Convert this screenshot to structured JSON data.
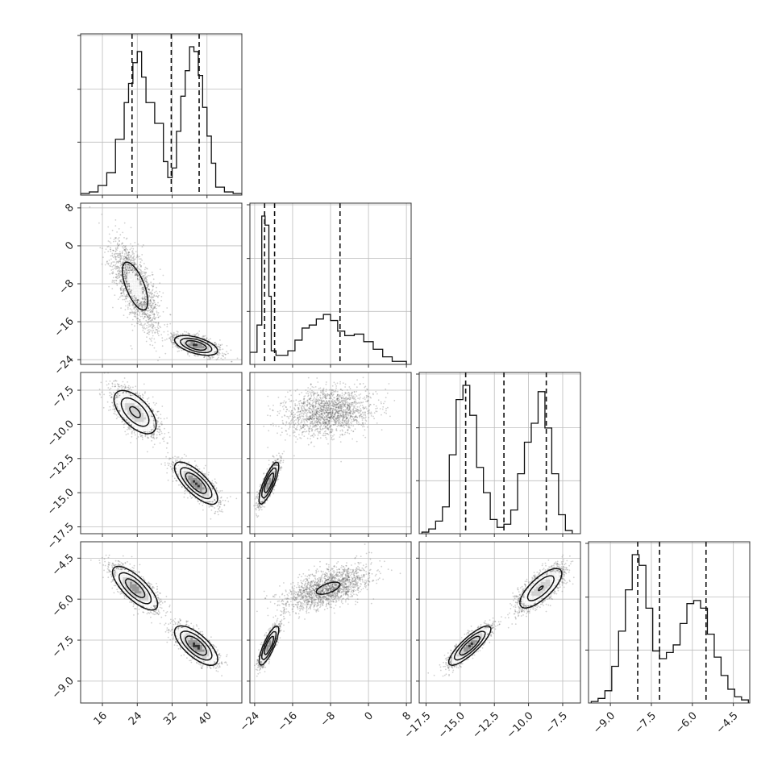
{
  "chart_data": {
    "type": "corner",
    "xlabel": "",
    "ylabel": "",
    "grid": true,
    "parameters": [
      {
        "range": [
          11,
          48
        ],
        "ticks": [
          16,
          24,
          32,
          40
        ],
        "tick_labels": [
          "16",
          "24",
          "32",
          "40"
        ],
        "quantiles": [
          22.8,
          31.8,
          38.2
        ],
        "hist_edges": [
          11,
          13,
          15,
          17,
          19,
          21,
          22,
          23,
          24,
          25,
          26,
          28,
          30,
          31,
          32,
          33,
          34,
          35,
          36,
          37,
          38,
          39,
          40,
          41,
          42,
          44,
          46,
          48
        ],
        "hist_values": [
          0.01,
          0.02,
          0.06,
          0.14,
          0.35,
          0.58,
          0.7,
          0.83,
          0.9,
          0.74,
          0.58,
          0.45,
          0.21,
          0.11,
          0.17,
          0.4,
          0.62,
          0.78,
          0.93,
          0.9,
          0.75,
          0.55,
          0.37,
          0.2,
          0.05,
          0.02,
          0.01
        ]
      },
      {
        "range": [
          -25,
          9
        ],
        "ticks": [
          -24,
          -16,
          -8,
          0,
          8
        ],
        "tick_labels": [
          "−24",
          "−16",
          "−8",
          "0",
          "8"
        ],
        "quantiles": [
          -21.9,
          -19.8,
          -6.0
        ],
        "hist_edges": [
          -25,
          -23.5,
          -22.5,
          -21.8,
          -21,
          -20.5,
          -19.5,
          -18.5,
          -17,
          -15.5,
          -14,
          -12.5,
          -11,
          -9.5,
          -8,
          -6.5,
          -5,
          -3,
          -1,
          1,
          3,
          5,
          8
        ],
        "hist_values": [
          0.08,
          0.26,
          0.98,
          0.92,
          0.45,
          0.09,
          0.06,
          0.06,
          0.09,
          0.16,
          0.24,
          0.26,
          0.3,
          0.33,
          0.29,
          0.22,
          0.19,
          0.2,
          0.15,
          0.1,
          0.05,
          0.02
        ]
      },
      {
        "range": [
          -18.0,
          -6.2
        ],
        "ticks": [
          -17.5,
          -15.0,
          -12.5,
          -10.0,
          -7.5
        ],
        "tick_labels": [
          "−17.5",
          "−15.0",
          "−12.5",
          "−10.0",
          "−7.5"
        ],
        "quantiles": [
          -14.6,
          -11.8,
          -8.7
        ],
        "hist_edges": [
          -17.8,
          -17.3,
          -16.8,
          -16.3,
          -15.8,
          -15.3,
          -14.8,
          -14.3,
          -13.8,
          -13.3,
          -12.8,
          -12.3,
          -11.8,
          -11.3,
          -10.8,
          -10.3,
          -9.8,
          -9.3,
          -8.8,
          -8.3,
          -7.8,
          -7.3,
          -6.8
        ],
        "hist_values": [
          0.01,
          0.03,
          0.08,
          0.17,
          0.5,
          0.85,
          0.94,
          0.75,
          0.42,
          0.26,
          0.09,
          0.04,
          0.06,
          0.15,
          0.38,
          0.58,
          0.7,
          0.9,
          0.67,
          0.38,
          0.12,
          0.02
        ]
      },
      {
        "range": [
          -9.8,
          -3.9
        ],
        "ticks": [
          -9.0,
          -7.5,
          -6.0,
          -4.5
        ],
        "tick_labels": [
          "−9.0",
          "−7.5",
          "−6.0",
          "−4.5"
        ],
        "quantiles": [
          -8.0,
          -7.2,
          -5.5
        ],
        "hist_edges": [
          -9.7,
          -9.45,
          -9.2,
          -8.95,
          -8.7,
          -8.45,
          -8.2,
          -7.95,
          -7.7,
          -7.45,
          -7.2,
          -6.95,
          -6.7,
          -6.45,
          -6.2,
          -5.95,
          -5.7,
          -5.45,
          -5.2,
          -4.95,
          -4.7,
          -4.45,
          -4.2,
          -3.95
        ],
        "hist_values": [
          0.01,
          0.03,
          0.08,
          0.24,
          0.47,
          0.74,
          0.97,
          0.9,
          0.62,
          0.34,
          0.29,
          0.33,
          0.38,
          0.52,
          0.65,
          0.67,
          0.62,
          0.45,
          0.3,
          0.18,
          0.09,
          0.04,
          0.02
        ]
      }
    ],
    "modes": [
      {
        "weight": 0.5,
        "mean": [
          23.5,
          -8.5,
          -9.1,
          -5.6
        ],
        "sd": [
          2.6,
          4.5,
          0.85,
          0.4
        ],
        "corr": [
          [
            1,
            -0.65,
            -0.6,
            -0.75
          ],
          [
            -0.65,
            1,
            0.2,
            0.6
          ],
          [
            -0.6,
            0.2,
            1,
            0.75
          ],
          [
            -0.75,
            0.6,
            0.75,
            1
          ]
        ]
      },
      {
        "weight": 0.5,
        "mean": [
          37.5,
          -21.0,
          -14.3,
          -7.7
        ],
        "sd": [
          2.4,
          1.0,
          0.75,
          0.35
        ],
        "corr": [
          [
            1,
            -0.55,
            -0.75,
            -0.7
          ],
          [
            -0.55,
            1,
            0.82,
            0.82
          ],
          [
            -0.75,
            0.82,
            1,
            0.85
          ],
          [
            -0.7,
            0.82,
            0.85,
            1
          ]
        ]
      }
    ]
  }
}
